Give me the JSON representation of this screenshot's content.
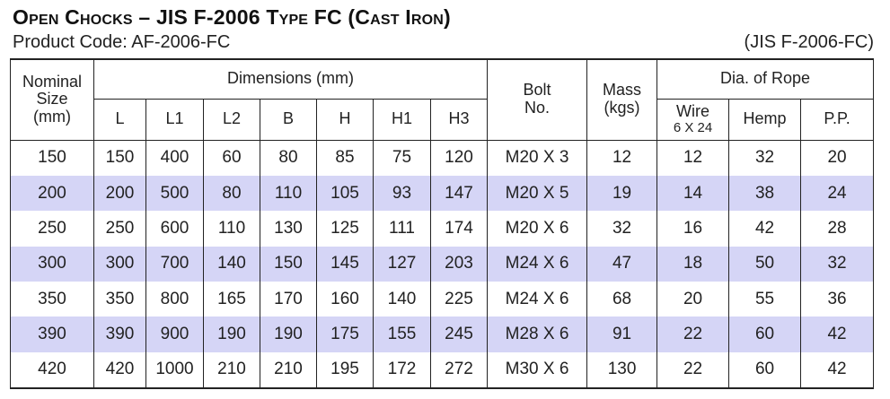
{
  "title": "Open Chocks – JIS F-2006 Type FC (Cast Iron)",
  "product_code": "Product Code: AF-2006-FC",
  "standard": "(JIS F-2006-FC)",
  "headers": {
    "nominal_size": [
      "Nominal",
      "Size",
      "(mm)"
    ],
    "dimensions": "Dimensions (mm)",
    "dim_cols": [
      "L",
      "L1",
      "L2",
      "B",
      "H",
      "H1",
      "H3"
    ],
    "bolt": [
      "Bolt",
      "No."
    ],
    "mass": [
      "Mass",
      "(kgs)"
    ],
    "rope": "Dia. of Rope",
    "wire": "Wire",
    "wire_sub": "6 X 24",
    "hemp": "Hemp",
    "pp": "P.P."
  },
  "row_shading_color": "#d5d5f6",
  "rows": [
    [
      "150",
      "150",
      "400",
      "60",
      "80",
      "85",
      "75",
      "120",
      "M20 X 3",
      "12",
      "12",
      "32",
      "20"
    ],
    [
      "200",
      "200",
      "500",
      "80",
      "110",
      "105",
      "93",
      "147",
      "M20 X 5",
      "19",
      "14",
      "38",
      "24"
    ],
    [
      "250",
      "250",
      "600",
      "110",
      "130",
      "125",
      "111",
      "174",
      "M20 X 6",
      "32",
      "16",
      "42",
      "28"
    ],
    [
      "300",
      "300",
      "700",
      "140",
      "150",
      "145",
      "127",
      "203",
      "M24 X 6",
      "47",
      "18",
      "50",
      "32"
    ],
    [
      "350",
      "350",
      "800",
      "165",
      "170",
      "160",
      "140",
      "225",
      "M24 X 6",
      "68",
      "20",
      "55",
      "36"
    ],
    [
      "390",
      "390",
      "900",
      "190",
      "190",
      "175",
      "155",
      "245",
      "M28 X 6",
      "91",
      "22",
      "60",
      "42"
    ],
    [
      "420",
      "420",
      "1000",
      "210",
      "210",
      "195",
      "172",
      "272",
      "M30 X 6",
      "130",
      "22",
      "60",
      "42"
    ]
  ]
}
